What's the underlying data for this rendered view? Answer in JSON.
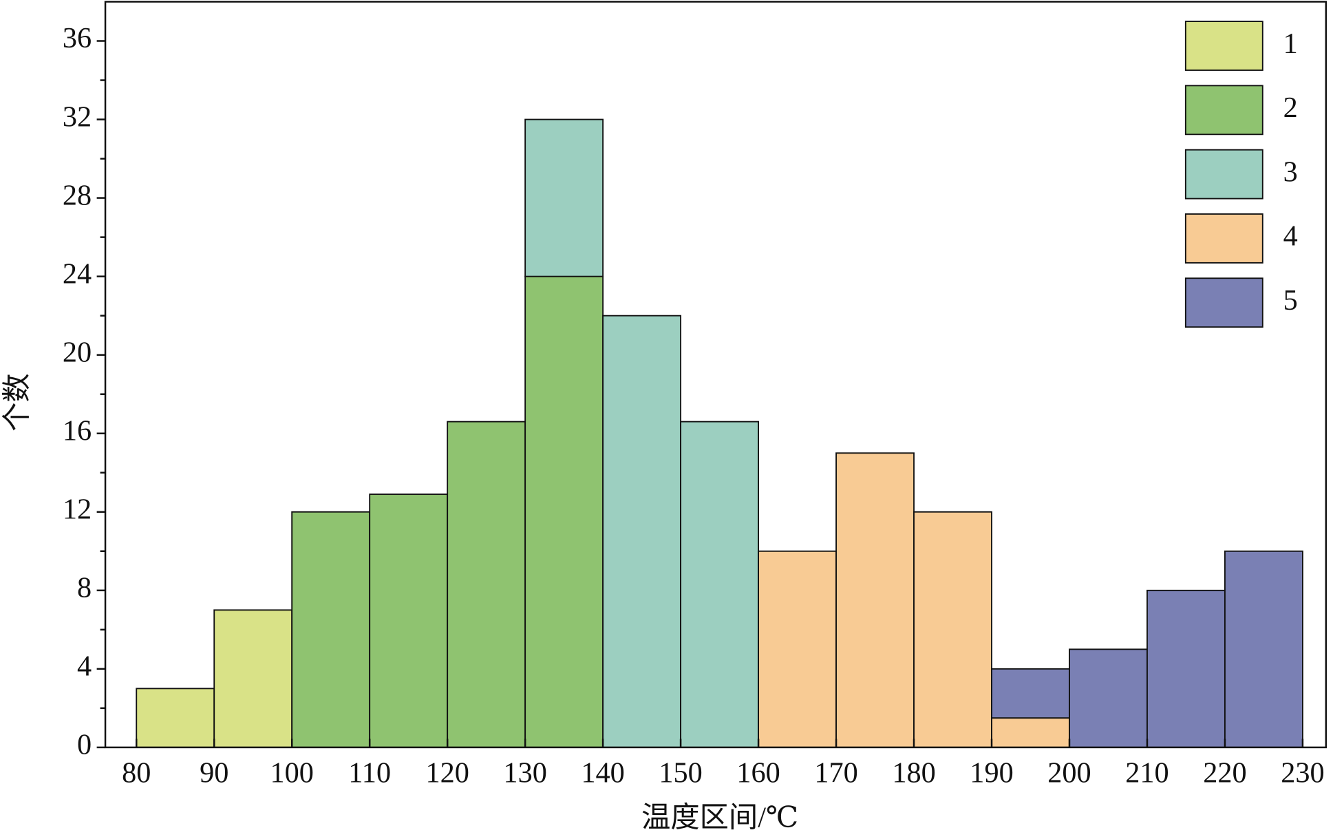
{
  "chart_data": {
    "type": "stacked-histogram",
    "x_label": "温度区间/℃",
    "y_label": "个数",
    "bins": [
      80,
      90,
      100,
      110,
      120,
      130,
      140,
      150,
      160,
      170,
      180,
      190,
      200,
      210,
      220,
      230
    ],
    "series": [
      {
        "name": "1",
        "color": "#d9e287",
        "values": [
          3,
          7,
          null,
          null,
          null,
          null,
          null,
          null,
          null,
          null,
          null,
          null,
          null,
          null,
          null
        ]
      },
      {
        "name": "2",
        "color": "#8fc370",
        "values": [
          null,
          null,
          12,
          12.9,
          16.6,
          24,
          null,
          null,
          null,
          null,
          null,
          null,
          null,
          null,
          null
        ]
      },
      {
        "name": "3",
        "color": "#9ccfc0",
        "values": [
          null,
          null,
          null,
          null,
          null,
          8,
          22,
          16.6,
          null,
          null,
          null,
          null,
          null,
          null,
          null
        ]
      },
      {
        "name": "4",
        "color": "#f8cb94",
        "values": [
          null,
          null,
          null,
          null,
          null,
          null,
          null,
          null,
          10,
          15,
          12,
          1.5,
          null,
          null,
          null
        ]
      },
      {
        "name": "5",
        "color": "#7a80b4",
        "values": [
          null,
          null,
          null,
          null,
          null,
          null,
          null,
          null,
          null,
          null,
          null,
          2.5,
          5,
          8,
          10
        ]
      }
    ],
    "xlim": [
      76,
      233
    ],
    "ylim": [
      0,
      38
    ],
    "xticks": [
      80,
      90,
      100,
      110,
      120,
      130,
      140,
      150,
      160,
      170,
      180,
      190,
      200,
      210,
      220,
      230
    ],
    "yticks": [
      0,
      4,
      8,
      12,
      16,
      20,
      24,
      28,
      32,
      36
    ],
    "legend": "upper right"
  }
}
